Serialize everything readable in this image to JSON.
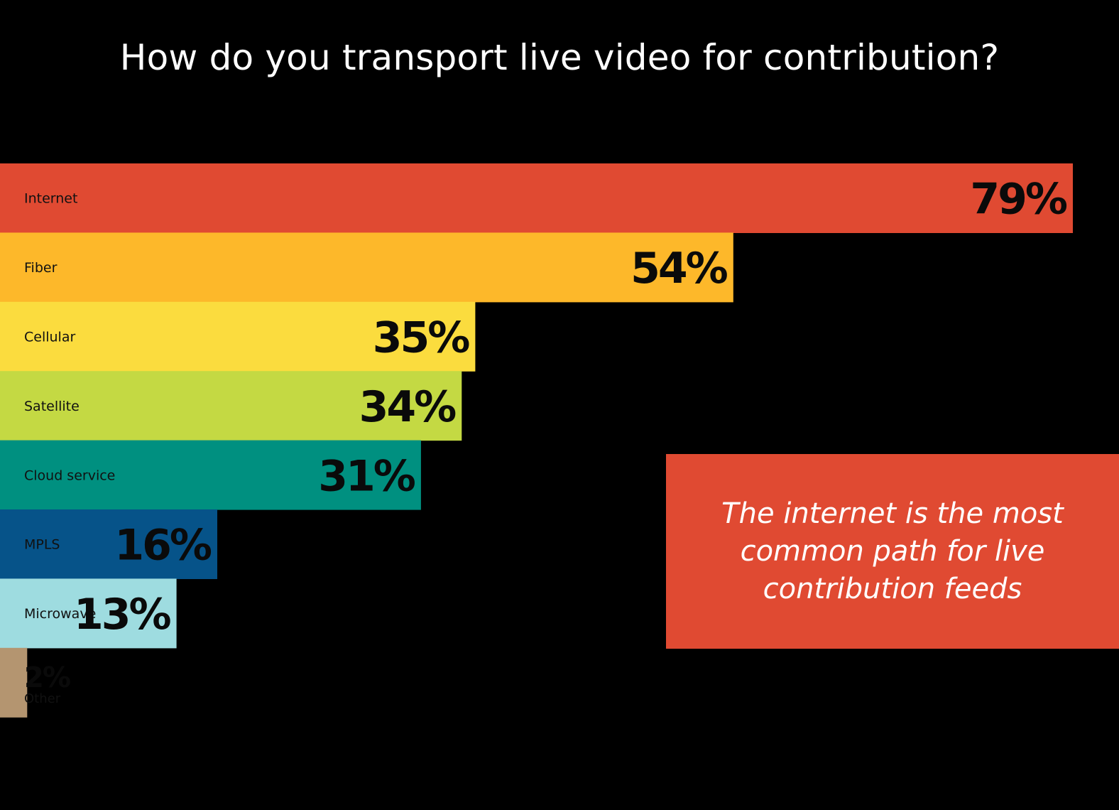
{
  "chart_data": {
    "type": "bar",
    "orientation": "horizontal",
    "title": "How do you transport live video for contribution?",
    "categories": [
      "Internet",
      "Fiber",
      "Cellular",
      "Satellite",
      "Cloud service",
      "MPLS",
      "Microwave",
      "Other"
    ],
    "values": [
      79,
      54,
      35,
      34,
      31,
      16,
      13,
      2
    ],
    "value_labels": [
      "79%",
      "54%",
      "35%",
      "34%",
      "31%",
      "16%",
      "13%",
      "2%"
    ],
    "colors": [
      "#e04a32",
      "#fdb82a",
      "#fbdc3e",
      "#c4d943",
      "#009080",
      "#065389",
      "#9edce0",
      "#b49570"
    ],
    "unit": "%",
    "xlabel": "",
    "ylabel": "",
    "grid": false,
    "legend": "none"
  },
  "callout": {
    "text": "The internet is the most common path for live contribution feeds",
    "color": "#e04a32"
  }
}
